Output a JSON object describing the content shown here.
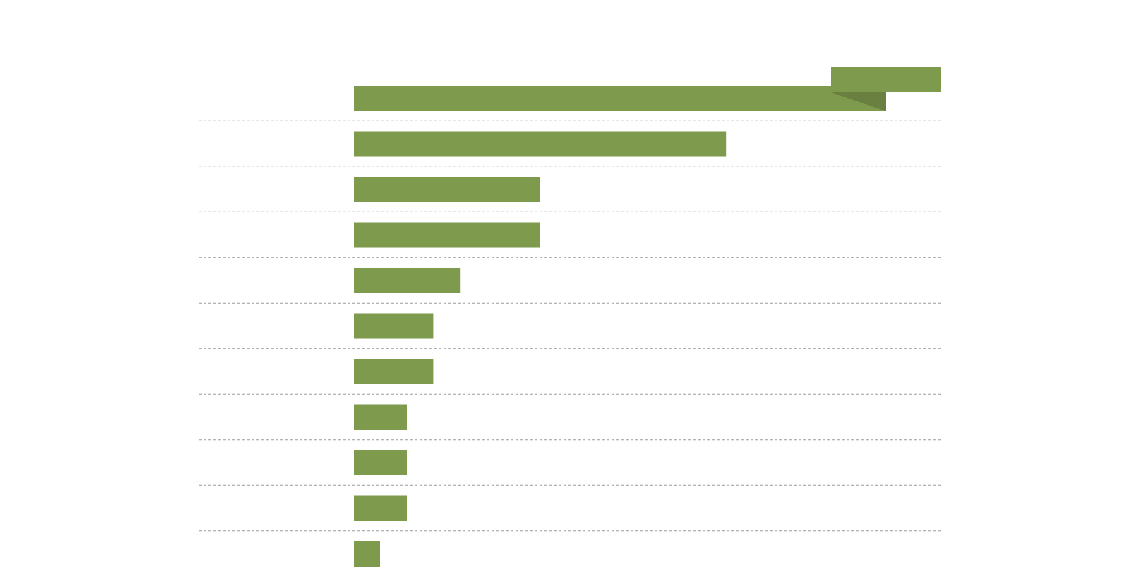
{
  "chart_data": {
    "type": "bar",
    "orientation": "horizontal",
    "title": "",
    "xlabel": "",
    "ylabel": "",
    "grid": true,
    "legend": "none",
    "values": [
      20,
      14,
      7,
      7,
      4,
      3,
      3,
      2,
      2,
      2,
      1
    ],
    "xlim": [
      0,
      20
    ],
    "bar_color": "#7e9a4c",
    "fold_color": "#6a8040"
  }
}
